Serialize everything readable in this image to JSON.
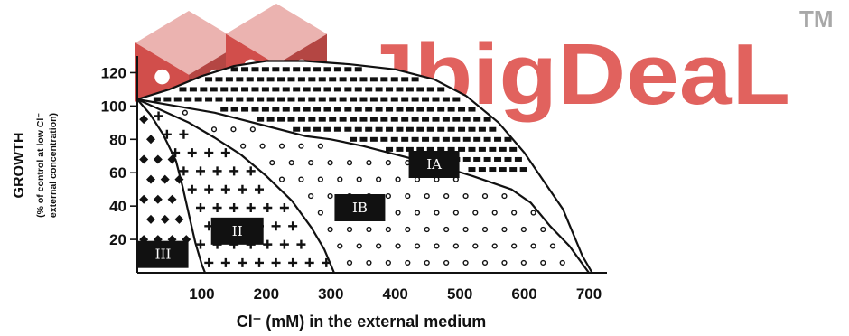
{
  "watermark": {
    "brand": "JbigDeaL",
    "trademark": "TM",
    "brand_color": "#d9322e",
    "dice_color": "#c9302c"
  },
  "chart_data": {
    "type": "area",
    "title": "",
    "ylabel": "GROWTH",
    "ylabel_sub1": "(% of control at low Cl⁻",
    "ylabel_sub2": "external concentration)",
    "xlabel": "Cl⁻ (mM) in the external medium",
    "xlim": [
      0,
      700
    ],
    "ylim": [
      0,
      130
    ],
    "x_ticks": [
      100,
      200,
      300,
      400,
      500,
      600,
      700
    ],
    "y_ticks": [
      20,
      40,
      60,
      80,
      100,
      120
    ],
    "boundaries": [
      {
        "name": "IA-upper",
        "points": [
          [
            0,
            104
          ],
          [
            50,
            110
          ],
          [
            100,
            118
          ],
          [
            150,
            124
          ],
          [
            200,
            127
          ],
          [
            260,
            127
          ],
          [
            330,
            125
          ],
          [
            400,
            122
          ],
          [
            460,
            116
          ],
          [
            510,
            106
          ],
          [
            560,
            90
          ],
          [
            600,
            72
          ],
          [
            630,
            55
          ],
          [
            660,
            38
          ],
          [
            690,
            10
          ],
          [
            705,
            0
          ]
        ]
      },
      {
        "name": "IA-IB",
        "points": [
          [
            0,
            104
          ],
          [
            60,
            100
          ],
          [
            120,
            96
          ],
          [
            200,
            88
          ],
          [
            260,
            82
          ],
          [
            300,
            80
          ],
          [
            350,
            76
          ],
          [
            400,
            71
          ],
          [
            460,
            65
          ],
          [
            520,
            58
          ],
          [
            580,
            50
          ],
          [
            610,
            42
          ],
          [
            640,
            28
          ],
          [
            670,
            16
          ],
          [
            700,
            0
          ]
        ]
      },
      {
        "name": "IB-II",
        "points": [
          [
            0,
            104
          ],
          [
            40,
            97
          ],
          [
            80,
            90
          ],
          [
            120,
            81
          ],
          [
            160,
            71
          ],
          [
            200,
            58
          ],
          [
            240,
            43
          ],
          [
            270,
            27
          ],
          [
            290,
            14
          ],
          [
            305,
            0
          ]
        ]
      },
      {
        "name": "II-III",
        "points": [
          [
            0,
            104
          ],
          [
            20,
            95
          ],
          [
            40,
            83
          ],
          [
            60,
            67
          ],
          [
            70,
            52
          ],
          [
            80,
            35
          ],
          [
            90,
            18
          ],
          [
            100,
            5
          ],
          [
            105,
            0
          ]
        ]
      }
    ],
    "regions": [
      {
        "label": "IA",
        "pattern": "dense-dashes",
        "label_at": [
          460,
          65
        ]
      },
      {
        "label": "IB",
        "pattern": "open-circles",
        "label_at": [
          345,
          39
        ]
      },
      {
        "label": "II",
        "pattern": "plus-signs",
        "label_at": [
          155,
          25
        ]
      },
      {
        "label": "III",
        "pattern": "diamonds",
        "label_at": [
          40,
          11
        ]
      }
    ]
  }
}
